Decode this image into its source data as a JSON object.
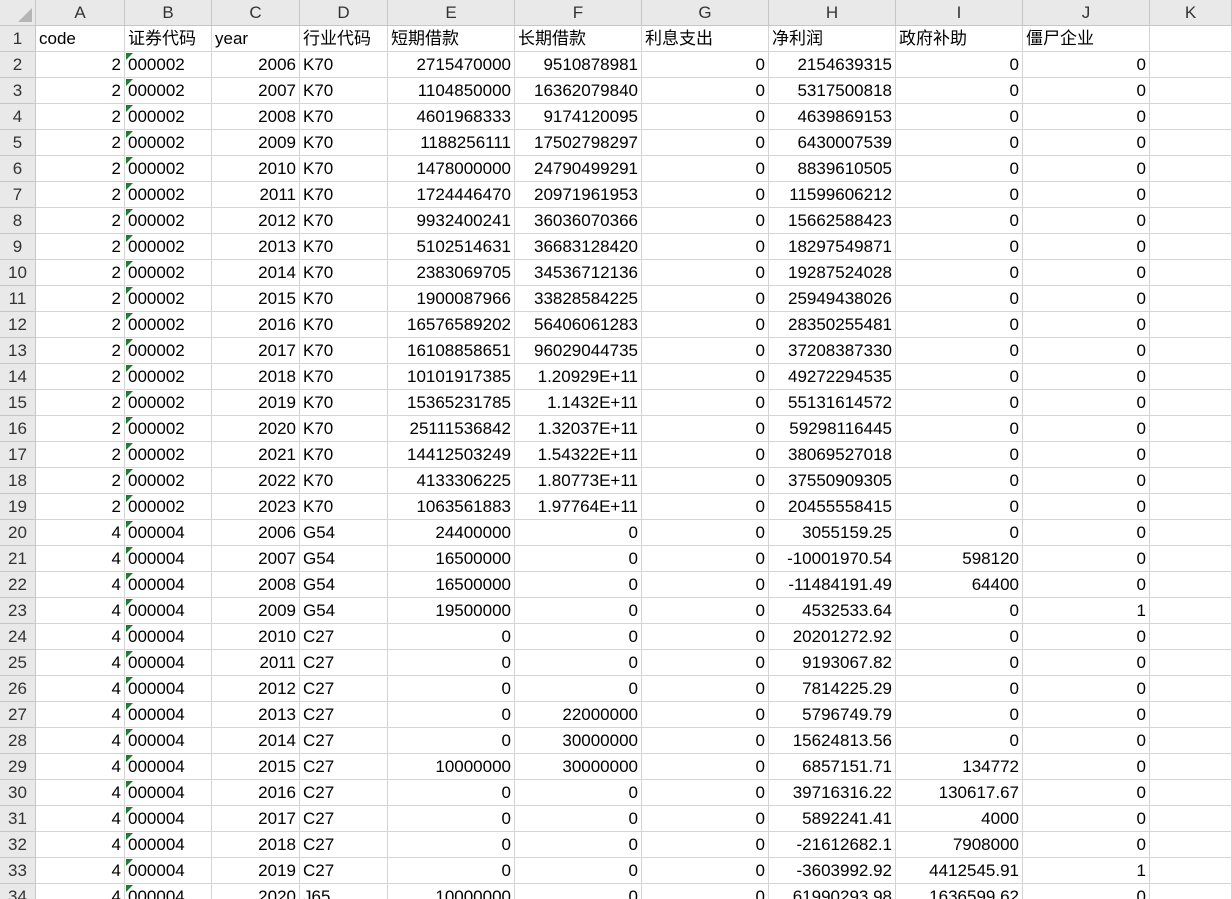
{
  "columns": [
    "A",
    "B",
    "C",
    "D",
    "E",
    "F",
    "G",
    "H",
    "I",
    "J",
    "K"
  ],
  "rows": [
    {
      "number": "1",
      "cells": [
        "code",
        "证券代码",
        "year",
        "行业代码",
        "短期借款",
        "长期借款",
        "利息支出",
        "净利润",
        "政府补助",
        "僵尸企业"
      ]
    },
    {
      "number": "2",
      "cells": [
        "2",
        "000002",
        "2006",
        "K70",
        "2715470000",
        "9510878981",
        "0",
        "2154639315",
        "0",
        "0"
      ]
    },
    {
      "number": "3",
      "cells": [
        "2",
        "000002",
        "2007",
        "K70",
        "1104850000",
        "16362079840",
        "0",
        "5317500818",
        "0",
        "0"
      ]
    },
    {
      "number": "4",
      "cells": [
        "2",
        "000002",
        "2008",
        "K70",
        "4601968333",
        "9174120095",
        "0",
        "4639869153",
        "0",
        "0"
      ]
    },
    {
      "number": "5",
      "cells": [
        "2",
        "000002",
        "2009",
        "K70",
        "1188256111",
        "17502798297",
        "0",
        "6430007539",
        "0",
        "0"
      ]
    },
    {
      "number": "6",
      "cells": [
        "2",
        "000002",
        "2010",
        "K70",
        "1478000000",
        "24790499291",
        "0",
        "8839610505",
        "0",
        "0"
      ]
    },
    {
      "number": "7",
      "cells": [
        "2",
        "000002",
        "2011",
        "K70",
        "1724446470",
        "20971961953",
        "0",
        "11599606212",
        "0",
        "0"
      ]
    },
    {
      "number": "8",
      "cells": [
        "2",
        "000002",
        "2012",
        "K70",
        "9932400241",
        "36036070366",
        "0",
        "15662588423",
        "0",
        "0"
      ]
    },
    {
      "number": "9",
      "cells": [
        "2",
        "000002",
        "2013",
        "K70",
        "5102514631",
        "36683128420",
        "0",
        "18297549871",
        "0",
        "0"
      ]
    },
    {
      "number": "10",
      "cells": [
        "2",
        "000002",
        "2014",
        "K70",
        "2383069705",
        "34536712136",
        "0",
        "19287524028",
        "0",
        "0"
      ]
    },
    {
      "number": "11",
      "cells": [
        "2",
        "000002",
        "2015",
        "K70",
        "1900087966",
        "33828584225",
        "0",
        "25949438026",
        "0",
        "0"
      ]
    },
    {
      "number": "12",
      "cells": [
        "2",
        "000002",
        "2016",
        "K70",
        "16576589202",
        "56406061283",
        "0",
        "28350255481",
        "0",
        "0"
      ]
    },
    {
      "number": "13",
      "cells": [
        "2",
        "000002",
        "2017",
        "K70",
        "16108858651",
        "96029044735",
        "0",
        "37208387330",
        "0",
        "0"
      ]
    },
    {
      "number": "14",
      "cells": [
        "2",
        "000002",
        "2018",
        "K70",
        "10101917385",
        "1.20929E+11",
        "0",
        "49272294535",
        "0",
        "0"
      ]
    },
    {
      "number": "15",
      "cells": [
        "2",
        "000002",
        "2019",
        "K70",
        "15365231785",
        "1.1432E+11",
        "0",
        "55131614572",
        "0",
        "0"
      ]
    },
    {
      "number": "16",
      "cells": [
        "2",
        "000002",
        "2020",
        "K70",
        "25111536842",
        "1.32037E+11",
        "0",
        "59298116445",
        "0",
        "0"
      ]
    },
    {
      "number": "17",
      "cells": [
        "2",
        "000002",
        "2021",
        "K70",
        "14412503249",
        "1.54322E+11",
        "0",
        "38069527018",
        "0",
        "0"
      ]
    },
    {
      "number": "18",
      "cells": [
        "2",
        "000002",
        "2022",
        "K70",
        "4133306225",
        "1.80773E+11",
        "0",
        "37550909305",
        "0",
        "0"
      ]
    },
    {
      "number": "19",
      "cells": [
        "2",
        "000002",
        "2023",
        "K70",
        "1063561883",
        "1.97764E+11",
        "0",
        "20455558415",
        "0",
        "0"
      ]
    },
    {
      "number": "20",
      "cells": [
        "4",
        "000004",
        "2006",
        "G54",
        "24400000",
        "0",
        "0",
        "3055159.25",
        "0",
        "0"
      ]
    },
    {
      "number": "21",
      "cells": [
        "4",
        "000004",
        "2007",
        "G54",
        "16500000",
        "0",
        "0",
        "-10001970.54",
        "598120",
        "0"
      ]
    },
    {
      "number": "22",
      "cells": [
        "4",
        "000004",
        "2008",
        "G54",
        "16500000",
        "0",
        "0",
        "-11484191.49",
        "64400",
        "0"
      ]
    },
    {
      "number": "23",
      "cells": [
        "4",
        "000004",
        "2009",
        "G54",
        "19500000",
        "0",
        "0",
        "4532533.64",
        "0",
        "1"
      ]
    },
    {
      "number": "24",
      "cells": [
        "4",
        "000004",
        "2010",
        "C27",
        "0",
        "0",
        "0",
        "20201272.92",
        "0",
        "0"
      ]
    },
    {
      "number": "25",
      "cells": [
        "4",
        "000004",
        "2011",
        "C27",
        "0",
        "0",
        "0",
        "9193067.82",
        "0",
        "0"
      ]
    },
    {
      "number": "26",
      "cells": [
        "4",
        "000004",
        "2012",
        "C27",
        "0",
        "0",
        "0",
        "7814225.29",
        "0",
        "0"
      ]
    },
    {
      "number": "27",
      "cells": [
        "4",
        "000004",
        "2013",
        "C27",
        "0",
        "22000000",
        "0",
        "5796749.79",
        "0",
        "0"
      ]
    },
    {
      "number": "28",
      "cells": [
        "4",
        "000004",
        "2014",
        "C27",
        "0",
        "30000000",
        "0",
        "15624813.56",
        "0",
        "0"
      ]
    },
    {
      "number": "29",
      "cells": [
        "4",
        "000004",
        "2015",
        "C27",
        "10000000",
        "30000000",
        "0",
        "6857151.71",
        "134772",
        "0"
      ]
    },
    {
      "number": "30",
      "cells": [
        "4",
        "000004",
        "2016",
        "C27",
        "0",
        "0",
        "0",
        "39716316.22",
        "130617.67",
        "0"
      ]
    },
    {
      "number": "31",
      "cells": [
        "4",
        "000004",
        "2017",
        "C27",
        "0",
        "0",
        "0",
        "5892241.41",
        "4000",
        "0"
      ]
    },
    {
      "number": "32",
      "cells": [
        "4",
        "000004",
        "2018",
        "C27",
        "0",
        "0",
        "0",
        "-21612682.1",
        "7908000",
        "0"
      ]
    },
    {
      "number": "33",
      "cells": [
        "4",
        "000004",
        "2019",
        "C27",
        "0",
        "0",
        "0",
        "-3603992.92",
        "4412545.91",
        "1"
      ]
    },
    {
      "number": "34",
      "cells": [
        "4",
        "000004",
        "2020",
        "J65",
        "10000000",
        "0",
        "0",
        "61990293.98",
        "1636599.62",
        "0"
      ]
    }
  ]
}
